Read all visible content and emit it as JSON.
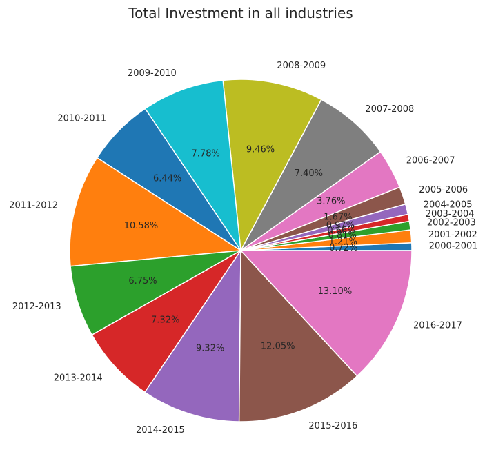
{
  "chart_data": {
    "type": "pie",
    "title": "Total Investment in all industries",
    "categories": [
      "2000-2001",
      "2001-2002",
      "2002-2003",
      "2003-2004",
      "2004-2005",
      "2005-2006",
      "2006-2007",
      "2007-2008",
      "2008-2009",
      "2009-2010",
      "2010-2011",
      "2011-2012",
      "2012-2013",
      "2013-2014",
      "2014-2015",
      "2015-2016",
      "2016-2017"
    ],
    "values": [
      0.72,
      1.21,
      0.81,
      0.66,
      0.97,
      1.67,
      3.76,
      7.4,
      9.46,
      7.78,
      6.44,
      10.58,
      6.75,
      7.32,
      9.32,
      12.05,
      13.1
    ],
    "labels": [
      "0.72%",
      "1.21%",
      "0.81%",
      "0.66%",
      "0.97%",
      "1.67%",
      "3.76%",
      "7.40%",
      "9.46%",
      "7.78%",
      "6.44%",
      "10.58%",
      "6.75%",
      "7.32%",
      "9.32%",
      "12.05%",
      "13.10%"
    ],
    "colors": [
      "#1f77b4",
      "#ff7f0e",
      "#2ca02c",
      "#d62728",
      "#9467bd",
      "#8c564b",
      "#e377c2",
      "#7f7f7f",
      "#bcbd22",
      "#17becf",
      "#1f77b4",
      "#ff7f0e",
      "#2ca02c",
      "#d62728",
      "#9467bd",
      "#8c564b",
      "#e377c2"
    ],
    "start_angle_deg": 0,
    "direction": "counterclockwise"
  }
}
